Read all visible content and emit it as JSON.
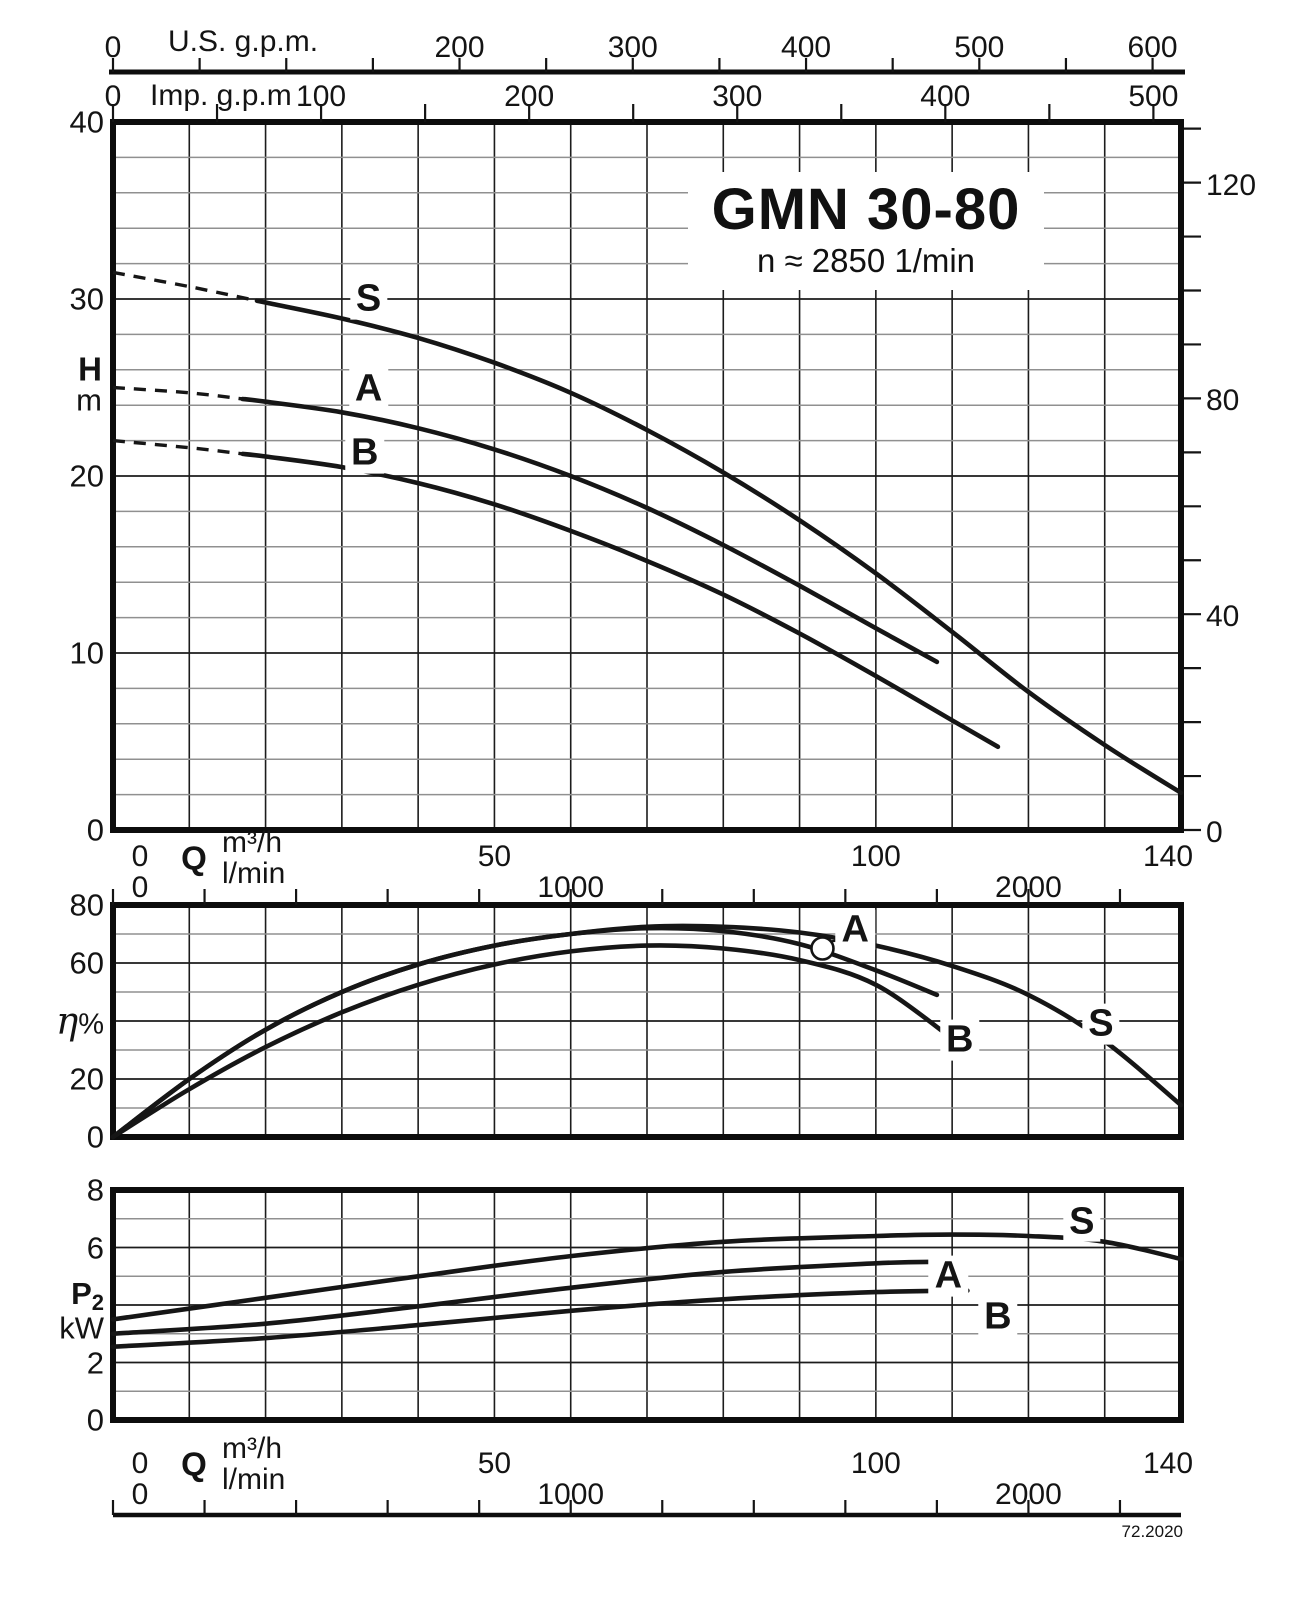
{
  "title": {
    "model": "GMN 30-80",
    "speed": "n ≈ 2850 1/min"
  },
  "code": "72.2020",
  "axes": {
    "us_gpm": {
      "label": "U.S. g.p.m.",
      "tick_labels": [
        0,
        200,
        300,
        400,
        500,
        600
      ],
      "tick_step": 50,
      "max": 600
    },
    "imp_gpm": {
      "label": "Imp. g.p.m",
      "tick_labels": [
        0,
        100,
        200,
        300,
        400,
        500
      ],
      "tick_step": 50,
      "max": 500
    },
    "flow": {
      "label": "Q",
      "unit_m3h": "m³/h",
      "unit_lmin": "l/min",
      "m3h_tick_labels": [
        0,
        50,
        100,
        140
      ],
      "lmin_tick_labels": [
        0,
        1000,
        2000
      ],
      "lmin_tick_step": 200,
      "max_m3h": 140
    },
    "head_m": {
      "label_h": "H",
      "label_m": "m",
      "tick_labels": [
        0,
        10,
        20,
        30,
        40
      ],
      "minor_step": 2,
      "max": 40
    },
    "head_ft": {
      "tick_labels": [
        0,
        40,
        80,
        120
      ],
      "tick_step": 10
    },
    "eta": {
      "symbol": "η",
      "pct": "%",
      "tick_labels": [
        0,
        20,
        60,
        80
      ],
      "minor_step": 10,
      "max": 80
    },
    "p2": {
      "label_p": "P",
      "label_sub": "2",
      "label_kw": "kW",
      "tick_labels": [
        0,
        2,
        6,
        8
      ],
      "minor_step": 1,
      "max": 8
    }
  },
  "chart_data": [
    {
      "type": "line",
      "title": "Head H vs flow Q",
      "xlabel": "Q (m³/h)",
      "ylabel": "H (m)",
      "xlim": [
        0,
        140
      ],
      "ylim": [
        0,
        40
      ],
      "grid": true,
      "series": [
        {
          "name": "S",
          "dash_until": 19,
          "label_at": [
            33.5,
            30.0
          ],
          "points": [
            [
              0,
              31.5
            ],
            [
              10,
              30.7
            ],
            [
              20,
              29.8
            ],
            [
              30,
              28.9
            ],
            [
              40,
              27.8
            ],
            [
              50,
              26.4
            ],
            [
              60,
              24.7
            ],
            [
              70,
              22.6
            ],
            [
              80,
              20.2
            ],
            [
              90,
              17.5
            ],
            [
              100,
              14.5
            ],
            [
              110,
              11.2
            ],
            [
              120,
              7.8
            ],
            [
              130,
              4.8
            ],
            [
              140,
              2.1
            ]
          ]
        },
        {
          "name": "A",
          "dash_until": 17,
          "label_at": [
            33.5,
            24.9
          ],
          "points": [
            [
              0,
              25.0
            ],
            [
              10,
              24.7
            ],
            [
              20,
              24.2
            ],
            [
              30,
              23.6
            ],
            [
              40,
              22.7
            ],
            [
              50,
              21.5
            ],
            [
              60,
              20.0
            ],
            [
              70,
              18.2
            ],
            [
              80,
              16.1
            ],
            [
              90,
              13.8
            ],
            [
              100,
              11.4
            ],
            [
              108,
              9.5
            ]
          ]
        },
        {
          "name": "B",
          "dash_until": 17,
          "label_at": [
            33.0,
            21.3
          ],
          "points": [
            [
              0,
              22.0
            ],
            [
              10,
              21.6
            ],
            [
              20,
              21.1
            ],
            [
              30,
              20.5
            ],
            [
              40,
              19.6
            ],
            [
              50,
              18.4
            ],
            [
              60,
              16.9
            ],
            [
              70,
              15.2
            ],
            [
              80,
              13.3
            ],
            [
              90,
              11.1
            ],
            [
              100,
              8.7
            ],
            [
              110,
              6.2
            ],
            [
              116,
              4.7
            ]
          ]
        }
      ]
    },
    {
      "type": "line",
      "title": "Efficiency η% vs flow Q",
      "xlabel": "Q (m³/h)",
      "ylabel": "η (%)",
      "xlim": [
        0,
        140
      ],
      "ylim": [
        0,
        80
      ],
      "grid": true,
      "series": [
        {
          "name": "S",
          "label_at": [
            129.5,
            39.0
          ],
          "points": [
            [
              0,
              0
            ],
            [
              10,
              20
            ],
            [
              20,
              37
            ],
            [
              30,
              50
            ],
            [
              40,
              59.5
            ],
            [
              50,
              66
            ],
            [
              60,
              70
            ],
            [
              70,
              72.5
            ],
            [
              80,
              72.5
            ],
            [
              90,
              70.5
            ],
            [
              100,
              66
            ],
            [
              110,
              59
            ],
            [
              120,
              49
            ],
            [
              130,
              33
            ],
            [
              140,
              11
            ]
          ]
        },
        {
          "name": "A",
          "label_at": [
            97.3,
            71.5
          ],
          "points": [
            [
              0,
              0
            ],
            [
              10,
              20
            ],
            [
              20,
              37
            ],
            [
              30,
              50
            ],
            [
              40,
              59.5
            ],
            [
              50,
              66
            ],
            [
              60,
              70
            ],
            [
              70,
              72
            ],
            [
              80,
              71
            ],
            [
              90,
              66.5
            ],
            [
              100,
              57.5
            ],
            [
              108,
              49
            ]
          ]
        },
        {
          "name": "B",
          "label_at": [
            111.0,
            33.5
          ],
          "points": [
            [
              0,
              0
            ],
            [
              10,
              16.5
            ],
            [
              20,
              31
            ],
            [
              30,
              43
            ],
            [
              40,
              52.5
            ],
            [
              50,
              59.5
            ],
            [
              60,
              64
            ],
            [
              70,
              66
            ],
            [
              80,
              65
            ],
            [
              90,
              61
            ],
            [
              100,
              52.5
            ],
            [
              110,
              34
            ]
          ]
        }
      ],
      "marker": {
        "series": "A",
        "q": 93,
        "value": 65
      }
    },
    {
      "type": "line",
      "title": "Power input P2 vs flow Q",
      "xlabel": "Q (m³/h)",
      "ylabel": "P2 (kW)",
      "xlim": [
        0,
        140
      ],
      "ylim": [
        0,
        8
      ],
      "grid": true,
      "series": [
        {
          "name": "S",
          "label_at": [
            127.0,
            6.9
          ],
          "points": [
            [
              0,
              3.5
            ],
            [
              20,
              4.25
            ],
            [
              40,
              5.0
            ],
            [
              60,
              5.7
            ],
            [
              80,
              6.2
            ],
            [
              100,
              6.4
            ],
            [
              110,
              6.45
            ],
            [
              120,
              6.4
            ],
            [
              130,
              6.2
            ],
            [
              140,
              5.6
            ]
          ]
        },
        {
          "name": "A",
          "label_at": [
            109.5,
            5.0
          ],
          "points": [
            [
              0,
              3.0
            ],
            [
              20,
              3.35
            ],
            [
              40,
              3.95
            ],
            [
              60,
              4.6
            ],
            [
              80,
              5.15
            ],
            [
              100,
              5.45
            ],
            [
              108,
              5.5
            ]
          ]
        },
        {
          "name": "B",
          "label_at": [
            116.0,
            3.6
          ],
          "points": [
            [
              0,
              2.55
            ],
            [
              20,
              2.85
            ],
            [
              40,
              3.3
            ],
            [
              60,
              3.8
            ],
            [
              80,
              4.2
            ],
            [
              100,
              4.45
            ],
            [
              112,
              4.5
            ]
          ]
        }
      ]
    }
  ]
}
